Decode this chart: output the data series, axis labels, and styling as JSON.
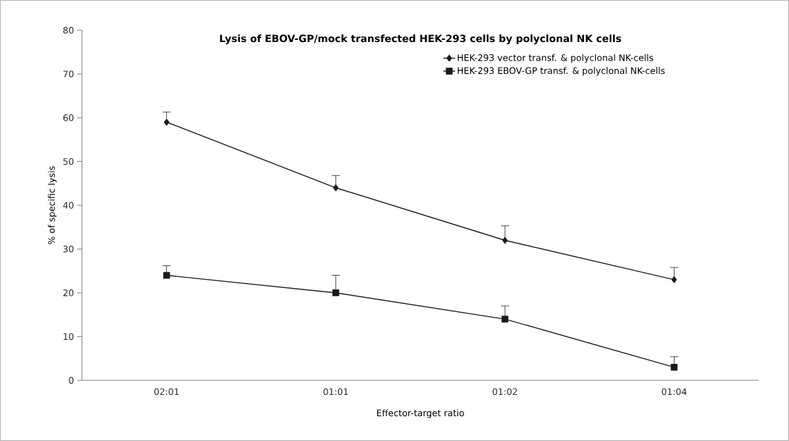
{
  "chart_data": {
    "type": "line",
    "title": "Lysis of EBOV-GP/mock transfected HEK-293 cells by polyclonal NK cells",
    "xlabel": "Effector-target ratio",
    "ylabel": "% of specific lysis",
    "categories": [
      "02:01",
      "01:01",
      "01:02",
      "01:04"
    ],
    "series": [
      {
        "name": "HEK-293 vector transf. & polyclonal NK-cells",
        "color": "#1a1a1a",
        "marker": "diamond",
        "values": [
          59,
          44,
          32,
          23
        ],
        "errors": [
          [
            59,
            61.3
          ],
          [
            44,
            46.8
          ],
          [
            32,
            35.3
          ],
          [
            23,
            25.8
          ]
        ]
      },
      {
        "name": "HEK-293 EBOV-GP transf. & polyclonal NK-cells",
        "color": "#1a1a1a",
        "marker": "square",
        "values": [
          24,
          20,
          14,
          3
        ],
        "errors": [
          [
            24,
            26.2
          ],
          [
            20,
            24
          ],
          [
            14,
            17
          ],
          [
            3,
            5.4
          ]
        ]
      }
    ],
    "ylim": [
      0,
      80
    ],
    "yticks": [
      0,
      10,
      20,
      30,
      40,
      50,
      60,
      70,
      80
    ],
    "legend": "top right",
    "line_style": "solid",
    "grid": false
  }
}
